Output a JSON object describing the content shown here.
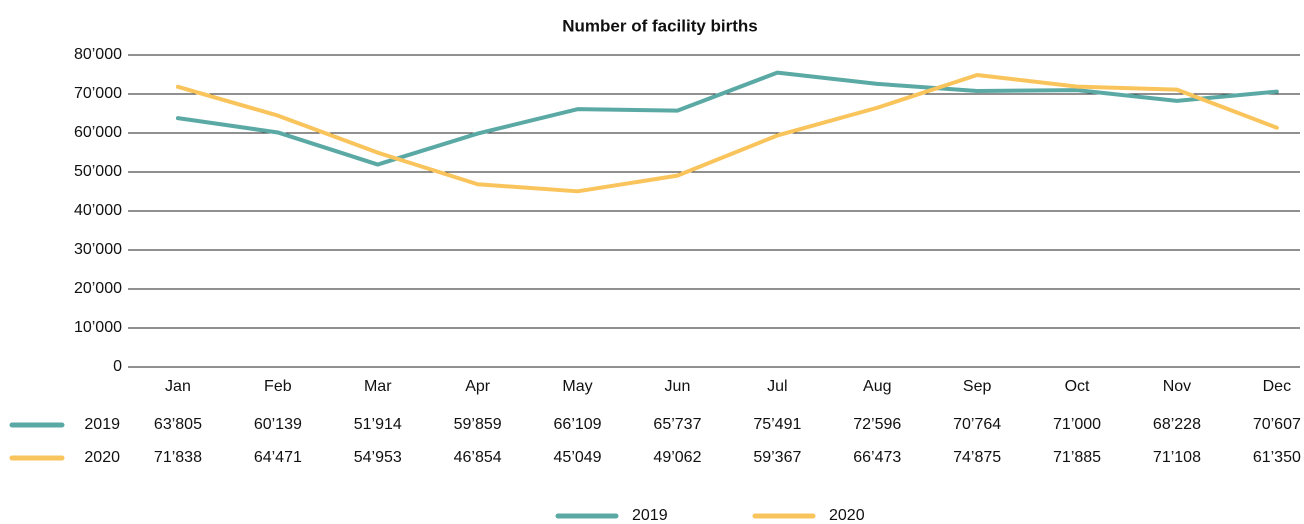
{
  "chart_data": {
    "type": "line",
    "title": "Number of facility births",
    "categories": [
      "Jan",
      "Feb",
      "Mar",
      "Apr",
      "May",
      "Jun",
      "Jul",
      "Aug",
      "Sep",
      "Oct",
      "Nov",
      "Dec"
    ],
    "series": [
      {
        "name": "2019",
        "color": "#5aa9a4",
        "values": [
          63805,
          60139,
          51914,
          59859,
          66109,
          65737,
          75491,
          72596,
          70764,
          71000,
          68228,
          70607
        ],
        "value_labels": [
          "63’805",
          "60’139",
          "51’914",
          "59’859",
          "66’109",
          "65’737",
          "75’491",
          "72’596",
          "70’764",
          "71’000",
          "68’228",
          "70’607"
        ]
      },
      {
        "name": "2020",
        "color": "#f9c45c",
        "values": [
          71838,
          64471,
          54953,
          46854,
          45049,
          49062,
          59367,
          66473,
          74875,
          71885,
          71108,
          61350
        ],
        "value_labels": [
          "71’838",
          "64’471",
          "54’953",
          "46’854",
          "45’049",
          "49’062",
          "59’367",
          "66’473",
          "74’875",
          "71’885",
          "71’108",
          "61’350"
        ]
      }
    ],
    "ylim": [
      0,
      80000
    ],
    "yticks": [
      0,
      {
        "value": 10000,
        "label": "10’000"
      },
      {
        "value": 20000,
        "label": "20’000"
      },
      {
        "value": 30000,
        "label": "30’000"
      },
      {
        "value": 40000,
        "label": "40’000"
      },
      {
        "value": 50000,
        "label": "50’000"
      },
      {
        "value": 60000,
        "label": "60’000"
      },
      {
        "value": 70000,
        "label": "70’000"
      },
      {
        "value": 80000,
        "label": "80’000"
      }
    ],
    "grid": true,
    "legend": "bottom"
  }
}
